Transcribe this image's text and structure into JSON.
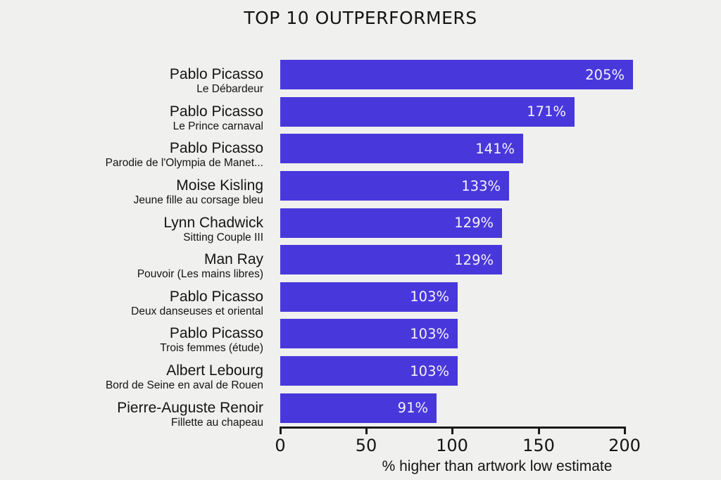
{
  "title": "TOP 10 OUTPERFORMERS",
  "colors": {
    "background": "#f0f0ee",
    "bar": "#4838db",
    "bar_label": "#f4f1fa",
    "text": "#141414"
  },
  "chart_data": {
    "type": "bar",
    "orientation": "horizontal",
    "title": "TOP 10 OUTPERFORMERS",
    "xlabel": "% higher than artwork low estimate",
    "xlim": [
      0,
      200
    ],
    "xticks": [
      0,
      50,
      100,
      150,
      200
    ],
    "unit": "%",
    "grid": false,
    "legend": false,
    "rows": [
      {
        "artist": "Pablo Picasso",
        "artwork": "Le Débardeur",
        "value": 205,
        "label": "205%"
      },
      {
        "artist": "Pablo Picasso",
        "artwork": "Le Prince carnaval",
        "value": 171,
        "label": "171%"
      },
      {
        "artist": "Pablo Picasso",
        "artwork": "Parodie de l'Olympia de Manet...",
        "value": 141,
        "label": "141%"
      },
      {
        "artist": "Moise Kisling",
        "artwork": "Jeune fille au corsage bleu",
        "value": 133,
        "label": "133%"
      },
      {
        "artist": "Lynn Chadwick",
        "artwork": "Sitting Couple III",
        "value": 129,
        "label": "129%"
      },
      {
        "artist": "Man Ray",
        "artwork": "Pouvoir (Les mains libres)",
        "value": 129,
        "label": "129%"
      },
      {
        "artist": "Pablo Picasso",
        "artwork": "Deux danseuses et oriental",
        "value": 103,
        "label": "103%"
      },
      {
        "artist": "Pablo Picasso",
        "artwork": "Trois femmes (étude)",
        "value": 103,
        "label": "103%"
      },
      {
        "artist": "Albert Lebourg",
        "artwork": "Bord de Seine en aval de Rouen",
        "value": 103,
        "label": "103%"
      },
      {
        "artist": "Pierre-Auguste Renoir",
        "artwork": "Fillette au chapeau",
        "value": 91,
        "label": "91%"
      }
    ]
  }
}
